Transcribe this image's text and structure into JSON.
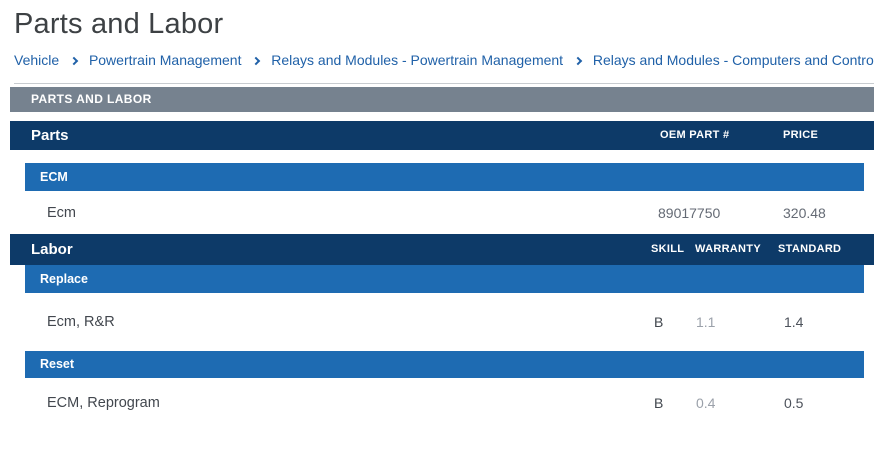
{
  "page": {
    "title": "Parts and Labor"
  },
  "breadcrumb": {
    "items": [
      "Vehicle",
      "Powertrain Management",
      "Relays and Modules - Powertrain Management",
      "Relays and Modules - Computers and Control Sys"
    ]
  },
  "table": {
    "banner": "PARTS AND LABOR",
    "parts_section": {
      "title": "Parts",
      "columns": [
        "OEM PART #",
        "PRICE"
      ],
      "groups": [
        {
          "name": "ECM",
          "rows": [
            {
              "label": "Ecm",
              "oem_part": "89017750",
              "price": "320.48"
            }
          ]
        }
      ]
    },
    "labor_section": {
      "title": "Labor",
      "columns": [
        "SKILL",
        "WARRANTY",
        "STANDARD"
      ],
      "groups": [
        {
          "name": "Replace",
          "rows": [
            {
              "label": "Ecm, R&R",
              "skill": "B",
              "warranty": "1.1",
              "standard": "1.4"
            }
          ]
        },
        {
          "name": "Reset",
          "rows": [
            {
              "label": "ECM, Reprogram",
              "skill": "B",
              "warranty": "0.4",
              "standard": "0.5"
            }
          ]
        }
      ]
    }
  },
  "colors": {
    "banner_bg": "#76828f",
    "section_bg": "#0d3a68",
    "group_bg": "#1e6bb2",
    "link_blue": "#2061a8",
    "label_text": "#42474e",
    "value_text": "#646a74",
    "warranty_muted": "#9ba1aa"
  }
}
